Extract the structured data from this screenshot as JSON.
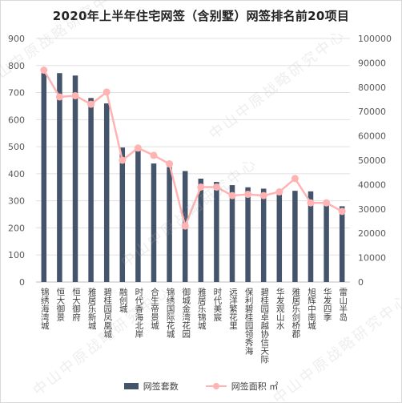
{
  "chart_data": {
    "type": "bar",
    "title": "2020年上半年住宅网签（含别墅）网签排名前20项目",
    "categories": [
      "锦绣海湾城",
      "恒大御景",
      "恒大御府",
      "雅居乐新城",
      "碧桂园凤凰城",
      "融创城",
      "时代香海北岸",
      "合生帝景城",
      "锦绣国际花城",
      "御城金湾花园",
      "雅居乐锦城",
      "时代美宸",
      "远洋繁花里",
      "保利碧桂园领秀海",
      "碧桂园卓越协信天际",
      "华发观山水",
      "雅居乐剑桥郡",
      "旭辉中南城",
      "华发四季",
      "雷山半岛"
    ],
    "series": [
      {
        "name": "网签套数",
        "axis": "left",
        "type": "bar",
        "color": "#44546a",
        "values": [
          780,
          772,
          763,
          680,
          660,
          497,
          487,
          438,
          425,
          410,
          382,
          370,
          358,
          350,
          345,
          340,
          337,
          335,
          300,
          280
        ]
      },
      {
        "name": "网签面积 ㎡",
        "axis": "right",
        "type": "line",
        "color": "#ffb3b3",
        "values": [
          87000,
          76000,
          76500,
          73000,
          78000,
          50000,
          55000,
          52000,
          48500,
          23000,
          39000,
          39000,
          35500,
          36000,
          35500,
          37000,
          42500,
          32500,
          32500,
          29000
        ]
      }
    ],
    "y_left": {
      "min": 0,
      "max": 900,
      "step": 100,
      "ticks": [
        "0",
        "100",
        "200",
        "300",
        "400",
        "500",
        "600",
        "700",
        "800",
        "900"
      ]
    },
    "y_right": {
      "min": 0,
      "max": 100000,
      "step": 10000,
      "ticks": [
        "0",
        "10000",
        "20000",
        "30000",
        "40000",
        "50000",
        "60000",
        "70000",
        "80000",
        "90000",
        "100000"
      ]
    },
    "grid": true,
    "legend_position": "bottom",
    "watermark_text": "中山中原战略研究中心"
  }
}
